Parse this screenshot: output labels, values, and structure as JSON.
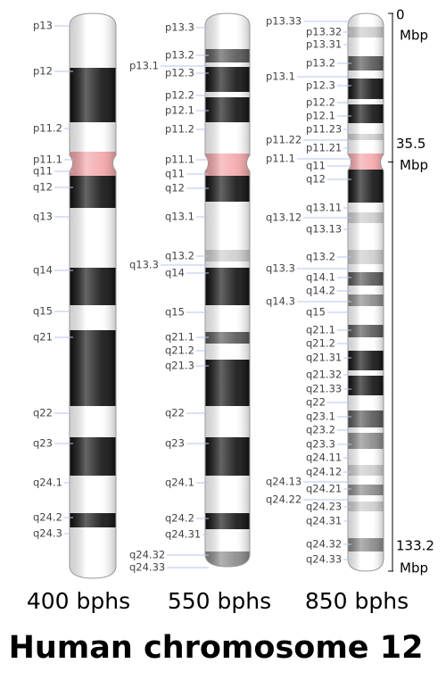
{
  "title": "Human chromosome 12",
  "scale": {
    "unit": "Mbp",
    "marks": [
      0,
      35.5,
      133.2
    ]
  },
  "columns": [
    {
      "resolution": "400 bphs",
      "bands": [
        "p13",
        "p12",
        "p11.2",
        "p11.1",
        "q11",
        "q12",
        "q13",
        "q14",
        "q15",
        "q21",
        "q22",
        "q23",
        "q24.1",
        "q24.2",
        "q24.3"
      ]
    },
    {
      "resolution": "550 bphs",
      "bands": [
        "p13.3",
        "p13.2",
        "p13.1",
        "p12.3",
        "p12.2",
        "p12.1",
        "p11.2",
        "p11.1",
        "q11",
        "q12",
        "q13.1",
        "q13.2",
        "q13.3",
        "q14",
        "q15",
        "q21.1",
        "q21.2",
        "q21.3",
        "q22",
        "q23",
        "q24.1",
        "q24.2",
        "q24.31",
        "q24.32",
        "q24.33"
      ]
    },
    {
      "resolution": "850 bphs",
      "bands": [
        "p13.33",
        "p13.32",
        "p13.31",
        "p13.2",
        "p13.1",
        "p12.3",
        "p12.2",
        "p12.1",
        "p11.23",
        "p11.22",
        "p11.21",
        "p11.1",
        "q11",
        "q12",
        "q13.11",
        "q13.12",
        "q13.13",
        "q13.2",
        "q13.3",
        "q14.1",
        "q14.2",
        "q14.3",
        "q15",
        "q21.1",
        "q21.2",
        "q21.31",
        "q21.32",
        "q21.33",
        "q22",
        "q23.1",
        "q23.2",
        "q23.3",
        "q24.11",
        "q24.12",
        "q24.13",
        "q24.21",
        "q24.22",
        "q24.23",
        "q24.31",
        "q24.32",
        "q24.33"
      ]
    }
  ]
}
